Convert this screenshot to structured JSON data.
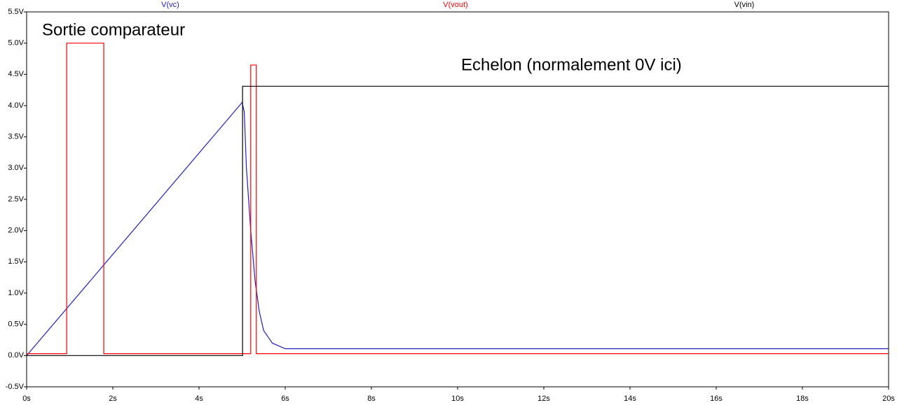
{
  "chart_data": {
    "type": "line",
    "annotations": [
      "Sortie comparateur",
      "Echelon (normalement 0V ici)"
    ],
    "series": [
      {
        "name": "V(vc)",
        "color": "#2020c0",
        "x": [
          0,
          5.0,
          5.05,
          5.1,
          5.2,
          5.3,
          5.4,
          5.5,
          5.7,
          6.0,
          20
        ],
        "values": [
          0,
          4.05,
          3.9,
          3.0,
          2.0,
          1.2,
          0.7,
          0.4,
          0.2,
          0.11,
          0.11
        ]
      },
      {
        "name": "V(vout)",
        "color": "#ff0000",
        "x": [
          0,
          0.93,
          0.93,
          1.79,
          1.79,
          5.2,
          5.2,
          5.33,
          5.33,
          20
        ],
        "values": [
          0.03,
          0.03,
          5.0,
          5.0,
          0.03,
          0.03,
          4.65,
          4.65,
          0.03,
          0.03
        ]
      },
      {
        "name": "V(vin)",
        "color": "#000000",
        "x": [
          0,
          5.01,
          5.01,
          20
        ],
        "values": [
          0,
          0,
          4.31,
          4.31
        ]
      }
    ],
    "xlim": [
      0,
      20
    ],
    "xticks": [
      {
        "value": 0,
        "label": "0s"
      },
      {
        "value": 2,
        "label": "2s"
      },
      {
        "value": 4,
        "label": "4s"
      },
      {
        "value": 6,
        "label": "6s"
      },
      {
        "value": 8,
        "label": "8s"
      },
      {
        "value": 10,
        "label": "10s"
      },
      {
        "value": 12,
        "label": "12s"
      },
      {
        "value": 14,
        "label": "14s"
      },
      {
        "value": 16,
        "label": "16s"
      },
      {
        "value": 18,
        "label": "18s"
      },
      {
        "value": 20,
        "label": "20s"
      }
    ],
    "ylim": [
      -0.5,
      5.5
    ],
    "yticks": [
      {
        "value": -0.5,
        "label": "-0.5V"
      },
      {
        "value": 0,
        "label": "0.0V"
      },
      {
        "value": 0.5,
        "label": "0.5V"
      },
      {
        "value": 1,
        "label": "1.0V"
      },
      {
        "value": 1.5,
        "label": "1.5V"
      },
      {
        "value": 2,
        "label": "2.0V"
      },
      {
        "value": 2.5,
        "label": "2.5V"
      },
      {
        "value": 3,
        "label": "3.0V"
      },
      {
        "value": 3.5,
        "label": "3.5V"
      },
      {
        "value": 4,
        "label": "4.0V"
      },
      {
        "value": 4.5,
        "label": "4.5V"
      },
      {
        "value": 5,
        "label": "5.0V"
      },
      {
        "value": 5.5,
        "label": "5.5V"
      }
    ],
    "grid": false
  }
}
